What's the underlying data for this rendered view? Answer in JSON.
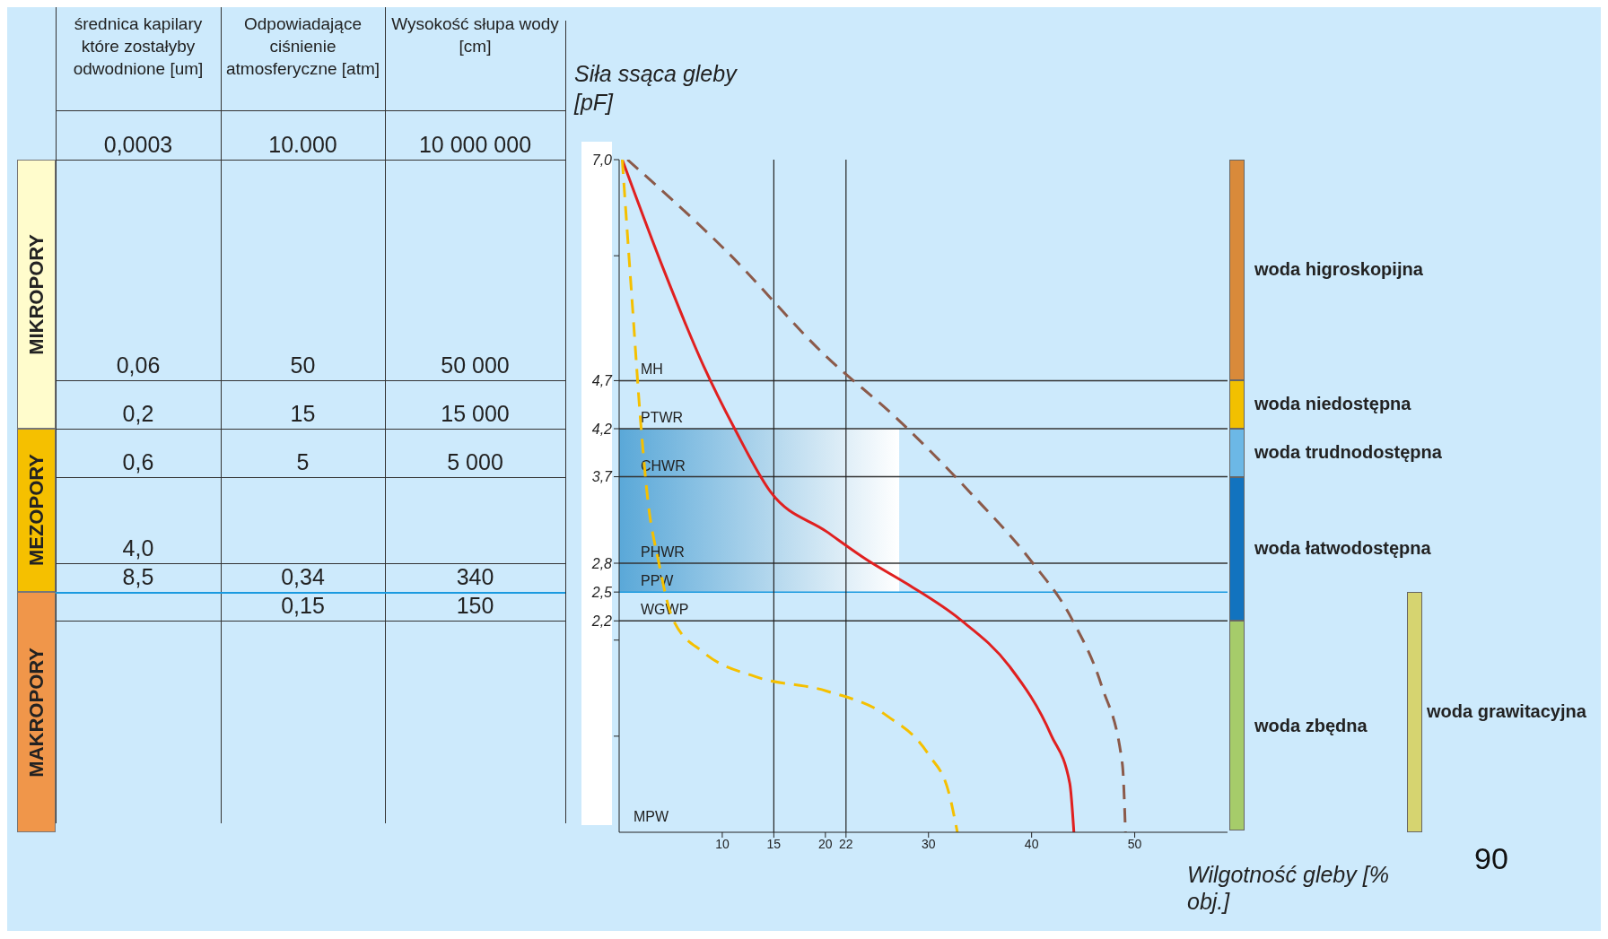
{
  "chart_data": {
    "type": "line",
    "xlabel": "Wilgotność gleby [% obj.]",
    "ylabel": "Siła ssąca gleby [pF]",
    "xlim": [
      0,
      59
    ],
    "xticks": [
      10,
      15,
      20,
      22,
      30,
      40,
      50
    ],
    "ylim": [
      0,
      7
    ],
    "yticks": [
      {
        "value": 7,
        "label": "7,0"
      },
      {
        "value": 6,
        "label": null
      },
      {
        "value": 4.7,
        "label": "4,7"
      },
      {
        "value": 4.2,
        "label": "4,2"
      },
      {
        "value": 3.7,
        "label": "3,7"
      },
      {
        "value": 2.8,
        "label": "2,8"
      },
      {
        "value": 2.5,
        "label": "2,5"
      },
      {
        "value": 2.2,
        "label": "2,2"
      },
      {
        "value": 2,
        "label": null
      },
      {
        "value": 1,
        "label": null
      }
    ],
    "grid": false,
    "series": [
      {
        "color": "#e02020",
        "line_style": "solid",
        "x": [
          0.3,
          4.3,
          8.2,
          11.2,
          14.7,
          20.1,
          24.1,
          28,
          33,
          37.9,
          41.9,
          43.7,
          44.1
        ],
        "values": [
          7.0,
          5.86,
          4.85,
          4.2,
          3.54,
          3.13,
          2.83,
          2.58,
          2.22,
          1.72,
          1.01,
          0.51,
          0
        ]
      },
      {
        "color": "#f5c000",
        "line_style": "dashed",
        "x": [
          0.3,
          1.3,
          2.1,
          2.8,
          3.8,
          5.2,
          8.2,
          13.2,
          20.1,
          26,
          30,
          32,
          32.8
        ],
        "values": [
          7.0,
          5.46,
          4.25,
          3.44,
          2.83,
          2.22,
          1.87,
          1.62,
          1.47,
          1.21,
          0.81,
          0.4,
          0
        ]
      },
      {
        "color": "#8b5a4a",
        "line_style": "dashed",
        "x": [
          0.8,
          10.2,
          20.1,
          27,
          34,
          39.9,
          43.9,
          46.8,
          48.8,
          49.1
        ],
        "values": [
          7.0,
          6.07,
          4.95,
          4.3,
          3.54,
          2.83,
          2.22,
          1.52,
          0.71,
          0
        ]
      }
    ],
    "ref_lines": [
      {
        "axis": "y",
        "value": 4.7,
        "label": "MH",
        "color": "#333333"
      },
      {
        "axis": "y",
        "value": 4.2,
        "label": "PTWR",
        "color": "#333333"
      },
      {
        "axis": "y",
        "value": 3.7,
        "label": "CHWR",
        "color": "#333333"
      },
      {
        "axis": "y",
        "value": 2.8,
        "label": "PHWR",
        "color": "#333333"
      },
      {
        "axis": "y",
        "value": 2.5,
        "label": "PPW",
        "color": "#1a9ae0"
      },
      {
        "axis": "y",
        "value": 2.2,
        "label": "WGWP",
        "color": "#333333"
      },
      {
        "axis": "x",
        "value": 15,
        "color": "#222222"
      },
      {
        "axis": "x",
        "value": 22,
        "color": "#222222"
      }
    ],
    "bands": [
      {
        "axis": "y",
        "from": 2.5,
        "to": 4.2,
        "color": "#5aa8d8"
      }
    ],
    "annotations": [
      "średnica kapilary które zostałyby odwodnione [um]",
      "Odpowiadające ciśnienie atmosferyczne [atm]",
      "Wysokość słupa wody [cm]",
      "0,0003",
      "10.000",
      "10 000 000",
      "0,06",
      "50",
      "50 000",
      "0,2",
      "15",
      "15 000",
      "0,6",
      "5",
      "5 000",
      "4,0",
      "8,5",
      "0,34",
      "340",
      "0,15",
      "150",
      "MPW",
      "MIKROPORY",
      "MEZOPORY",
      "MAKROPORY",
      "woda higroskopijna",
      "woda niedostępna",
      "woda trudnodostępna",
      "woda łatwodostępna",
      "woda zbędna",
      "woda grawitacyjna",
      "90"
    ]
  }
}
